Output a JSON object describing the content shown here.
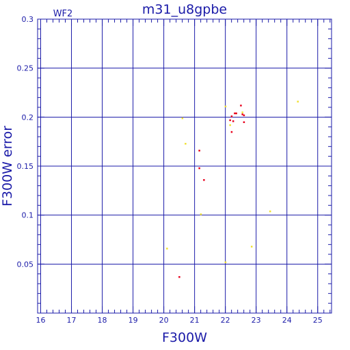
{
  "chart_data": {
    "type": "scatter",
    "title": "m31_u8gpbe",
    "subtitle": "WF2",
    "xlabel": "F300W",
    "ylabel": "F300W error",
    "xlim": [
      15.9,
      25.45
    ],
    "ylim": [
      0.0,
      0.3
    ],
    "xticks": [
      16,
      17,
      18,
      19,
      20,
      21,
      22,
      23,
      24,
      25
    ],
    "xtick_labels": [
      "16",
      "17",
      "18",
      "19",
      "20",
      "21",
      "22",
      "23",
      "24",
      "25"
    ],
    "yticks": [
      0.05,
      0.1,
      0.15,
      0.2,
      0.25,
      0.3
    ],
    "ytick_labels": [
      "0.05",
      "0.1",
      "0.15",
      "0.2",
      "0.25",
      "0.3"
    ],
    "grid": true,
    "colors": {
      "axes": "#1a1aa8",
      "red": "#e8001c",
      "yellow": "#f0e030"
    },
    "series": [
      {
        "color": "red",
        "points": [
          [
            20.5,
            0.037
          ],
          [
            21.15,
            0.166
          ],
          [
            21.15,
            0.148
          ],
          [
            21.3,
            0.136
          ],
          [
            22.15,
            0.197
          ],
          [
            22.2,
            0.185
          ],
          [
            22.2,
            0.201
          ],
          [
            22.25,
            0.196
          ],
          [
            22.3,
            0.204
          ],
          [
            22.35,
            0.204
          ],
          [
            22.5,
            0.212
          ],
          [
            22.55,
            0.203
          ],
          [
            22.6,
            0.195
          ],
          [
            22.6,
            0.202
          ]
        ]
      },
      {
        "color": "yellow",
        "points": [
          [
            20.1,
            0.066
          ],
          [
            20.6,
            0.199
          ],
          [
            20.7,
            0.173
          ],
          [
            21.2,
            0.101
          ],
          [
            22.0,
            0.211
          ],
          [
            22.0,
            0.052
          ],
          [
            22.15,
            0.192
          ],
          [
            22.55,
            0.205
          ],
          [
            22.85,
            0.068
          ],
          [
            23.45,
            0.104
          ],
          [
            24.35,
            0.216
          ]
        ]
      }
    ]
  }
}
